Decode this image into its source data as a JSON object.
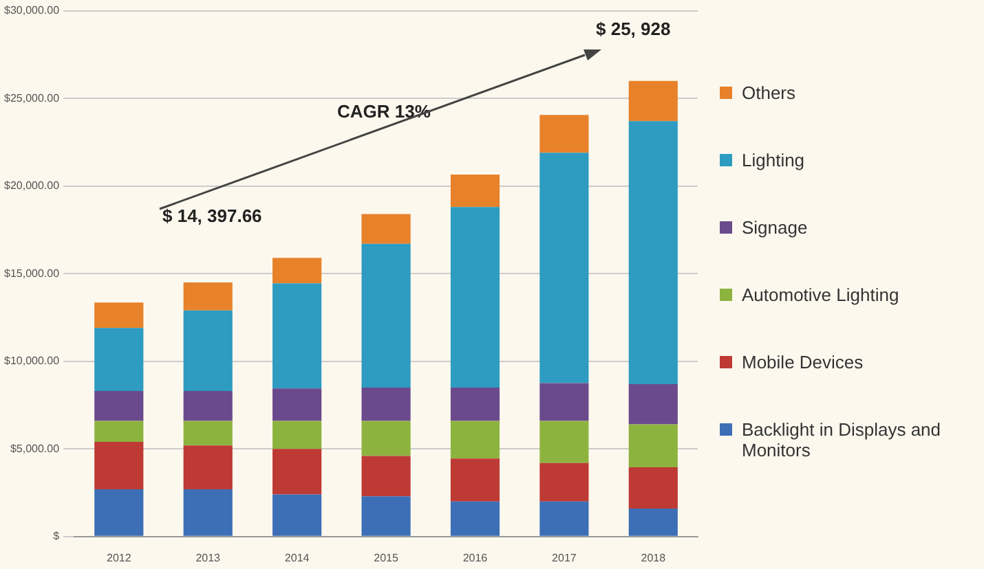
{
  "chart_data": {
    "type": "bar",
    "stacked": true,
    "categories": [
      "2012",
      "2013",
      "2014",
      "2015",
      "2016",
      "2017",
      "2018"
    ],
    "series": [
      {
        "name": "Backlight in Displays and Monitors",
        "color": "#3d6fb6",
        "values": [
          2700,
          2700,
          2400,
          2300,
          2000,
          2000,
          1600
        ]
      },
      {
        "name": "Mobile Devices",
        "color": "#be3a34",
        "values": [
          2700,
          2500,
          2600,
          2300,
          2450,
          2200,
          2350
        ]
      },
      {
        "name": "Automotive Lighting",
        "color": "#8db33f",
        "values": [
          1200,
          1400,
          1600,
          2000,
          2150,
          2400,
          2450
        ]
      },
      {
        "name": "Signage",
        "color": "#6a4a8c",
        "values": [
          1700,
          1700,
          1850,
          1900,
          1900,
          2150,
          2300
        ]
      },
      {
        "name": "Lighting",
        "color": "#2e9bc1",
        "values": [
          3600,
          4600,
          6000,
          8200,
          10300,
          13150,
          15000
        ]
      },
      {
        "name": "Others",
        "color": "#e8822a",
        "values": [
          1450,
          1600,
          1450,
          1700,
          1850,
          2150,
          2300
        ]
      }
    ],
    "ylim": [
      0,
      30000
    ],
    "yticks": [
      {
        "value": 0,
        "label": "$"
      },
      {
        "value": 5000,
        "label": "$5,000.00"
      },
      {
        "value": 10000,
        "label": "$10,000.00"
      },
      {
        "value": 15000,
        "label": "$15,000.00"
      },
      {
        "value": 20000,
        "label": "$20,000.00"
      },
      {
        "value": 25000,
        "label": "$25,000.00"
      },
      {
        "value": 30000,
        "label": "$30,000.00"
      }
    ],
    "grid": "y",
    "legend": "right",
    "annotations": [
      "$ 14, 397.66",
      "CAGR 13%",
      "$ 25, 928"
    ]
  }
}
